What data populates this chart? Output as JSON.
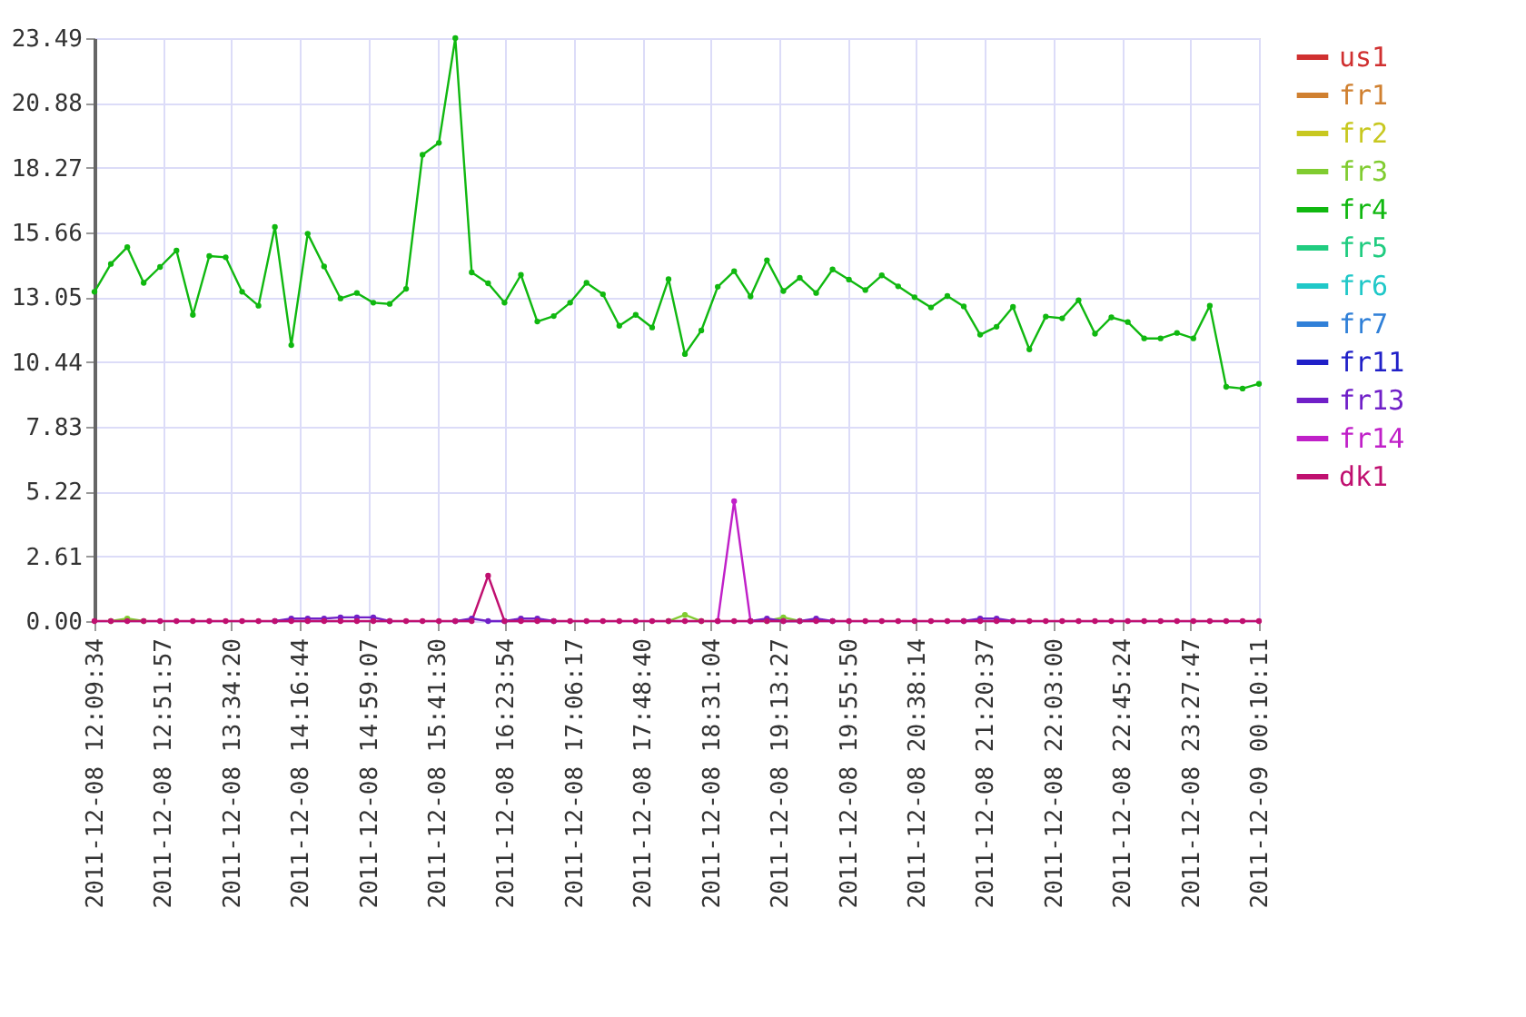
{
  "chart_data": {
    "type": "line",
    "x": [
      "2011-12-08T12:09:34",
      "2011-12-08T12:19:43",
      "2011-12-08T12:29:52",
      "2011-12-08T12:40:01",
      "2011-12-08T12:50:10",
      "2011-12-08T13:00:19",
      "2011-12-08T13:10:28",
      "2011-12-08T13:20:37",
      "2011-12-08T13:30:46",
      "2011-12-08T13:40:55",
      "2011-12-08T13:51:04",
      "2011-12-08T14:01:13",
      "2011-12-08T14:11:22",
      "2011-12-08T14:21:31",
      "2011-12-08T14:31:40",
      "2011-12-08T14:41:49",
      "2011-12-08T14:51:58",
      "2011-12-08T15:02:07",
      "2011-12-08T15:12:16",
      "2011-12-08T15:22:25",
      "2011-12-08T15:32:34",
      "2011-12-08T15:42:43",
      "2011-12-08T15:52:52",
      "2011-12-08T16:03:01",
      "2011-12-08T16:13:10",
      "2011-12-08T16:23:19",
      "2011-12-08T16:33:28",
      "2011-12-08T16:43:37",
      "2011-12-08T16:53:46",
      "2011-12-08T17:03:55",
      "2011-12-08T17:14:04",
      "2011-12-08T17:24:13",
      "2011-12-08T17:34:22",
      "2011-12-08T17:44:31",
      "2011-12-08T17:54:40",
      "2011-12-08T18:04:49",
      "2011-12-08T18:14:58",
      "2011-12-08T18:25:07",
      "2011-12-08T18:35:16",
      "2011-12-08T18:45:25",
      "2011-12-08T18:55:34",
      "2011-12-08T19:05:43",
      "2011-12-08T19:15:52",
      "2011-12-08T19:26:01",
      "2011-12-08T19:36:10",
      "2011-12-08T19:46:19",
      "2011-12-08T19:56:28",
      "2011-12-08T20:06:37",
      "2011-12-08T20:16:46",
      "2011-12-08T20:26:55",
      "2011-12-08T20:37:04",
      "2011-12-08T20:47:13",
      "2011-12-08T20:57:22",
      "2011-12-08T21:07:31",
      "2011-12-08T21:17:40",
      "2011-12-08T21:27:49",
      "2011-12-08T21:37:58",
      "2011-12-08T21:48:07",
      "2011-12-08T21:58:16",
      "2011-12-08T22:08:25",
      "2011-12-08T22:18:34",
      "2011-12-08T22:28:43",
      "2011-12-08T22:38:52",
      "2011-12-08T22:49:01",
      "2011-12-08T22:59:10",
      "2011-12-08T23:09:19",
      "2011-12-08T23:19:28",
      "2011-12-08T23:29:37",
      "2011-12-08T23:39:46",
      "2011-12-08T23:49:55",
      "2011-12-09T00:00:04",
      "2011-12-09T00:10:11"
    ],
    "series": [
      {
        "name": "us1",
        "color": "#d03030",
        "values": [
          null,
          null,
          null,
          null,
          null,
          null,
          null,
          null,
          null,
          null,
          null,
          null,
          null,
          null,
          null,
          null,
          null,
          null,
          null,
          null,
          null,
          null,
          null,
          null,
          null,
          null,
          null,
          null,
          null,
          null,
          null,
          null,
          null,
          null,
          null,
          null,
          null,
          null,
          null,
          null,
          null,
          null,
          null,
          null,
          null,
          null,
          null,
          null,
          null,
          null,
          null,
          null,
          null,
          null,
          null,
          null,
          null,
          null,
          null,
          null,
          null,
          null,
          null,
          null,
          null,
          null,
          null,
          null,
          null,
          null,
          null,
          null
        ]
      },
      {
        "name": "fr1",
        "color": "#d08030",
        "values": [
          null,
          null,
          null,
          null,
          null,
          null,
          null,
          null,
          null,
          null,
          null,
          null,
          null,
          null,
          null,
          null,
          null,
          null,
          null,
          null,
          null,
          null,
          null,
          null,
          null,
          null,
          null,
          null,
          null,
          null,
          null,
          null,
          null,
          null,
          null,
          null,
          null,
          null,
          null,
          null,
          null,
          null,
          null,
          null,
          null,
          null,
          null,
          null,
          null,
          null,
          null,
          null,
          null,
          null,
          null,
          null,
          null,
          null,
          null,
          null,
          null,
          null,
          null,
          null,
          null,
          null,
          null,
          null,
          null,
          null,
          null,
          null
        ]
      },
      {
        "name": "fr2",
        "color": "#c8c820",
        "values": [
          null,
          null,
          null,
          null,
          null,
          null,
          null,
          null,
          null,
          null,
          null,
          null,
          null,
          null,
          null,
          null,
          null,
          null,
          null,
          null,
          null,
          null,
          null,
          null,
          null,
          null,
          null,
          null,
          null,
          null,
          null,
          null,
          null,
          null,
          null,
          null,
          null,
          null,
          null,
          null,
          null,
          null,
          null,
          null,
          null,
          null,
          null,
          null,
          null,
          null,
          null,
          null,
          null,
          null,
          null,
          null,
          null,
          null,
          null,
          null,
          null,
          null,
          null,
          null,
          null,
          null,
          null,
          null,
          null,
          null,
          null,
          null
        ]
      },
      {
        "name": "fr3",
        "color": "#80cc30",
        "values": [
          null,
          0,
          0.1,
          0,
          null,
          null,
          null,
          null,
          null,
          null,
          null,
          null,
          null,
          null,
          null,
          null,
          null,
          null,
          null,
          null,
          null,
          null,
          null,
          null,
          null,
          null,
          null,
          null,
          null,
          null,
          null,
          null,
          null,
          null,
          null,
          0,
          0.25,
          0,
          null,
          null,
          null,
          0,
          0.15,
          0,
          null,
          null,
          null,
          null,
          null,
          null,
          null,
          null,
          null,
          null,
          null,
          null,
          null,
          null,
          null,
          null,
          null,
          null,
          null,
          null,
          null,
          null,
          null,
          null,
          null,
          null,
          null,
          null
        ]
      },
      {
        "name": "fr4",
        "color": "#10b810",
        "values": [
          13.27,
          14.39,
          15.07,
          13.63,
          14.27,
          14.93,
          12.34,
          14.71,
          14.66,
          13.27,
          12.71,
          15.88,
          11.12,
          15.61,
          14.29,
          13.0,
          13.22,
          12.83,
          12.78,
          13.39,
          18.79,
          19.27,
          23.49,
          14.05,
          13.61,
          12.83,
          13.95,
          12.07,
          12.29,
          12.83,
          13.63,
          13.17,
          11.9,
          12.34,
          11.83,
          13.78,
          10.76,
          11.71,
          13.47,
          14.1,
          13.08,
          14.54,
          13.3,
          13.83,
          13.22,
          14.17,
          13.76,
          13.34,
          13.93,
          13.49,
          13.05,
          12.64,
          13.1,
          12.68,
          11.54,
          11.86,
          12.66,
          10.95,
          12.27,
          12.2,
          12.93,
          11.58,
          12.24,
          12.05,
          11.39,
          11.39,
          11.61,
          11.39,
          12.71,
          9.44,
          9.37,
          9.56
        ]
      },
      {
        "name": "fr5",
        "color": "#20cc80",
        "values": [
          null,
          null,
          null,
          null,
          null,
          null,
          null,
          null,
          null,
          null,
          null,
          null,
          null,
          null,
          null,
          null,
          null,
          null,
          null,
          null,
          null,
          null,
          null,
          null,
          null,
          null,
          null,
          null,
          null,
          null,
          null,
          null,
          null,
          null,
          null,
          null,
          null,
          null,
          null,
          null,
          null,
          null,
          null,
          null,
          null,
          null,
          null,
          null,
          null,
          null,
          null,
          null,
          null,
          null,
          null,
          null,
          null,
          null,
          null,
          null,
          null,
          null,
          null,
          null,
          null,
          null,
          null,
          null,
          null,
          null,
          null,
          null
        ]
      },
      {
        "name": "fr6",
        "color": "#20c8c8",
        "values": [
          null,
          null,
          null,
          null,
          null,
          null,
          null,
          null,
          null,
          null,
          null,
          null,
          null,
          null,
          null,
          null,
          null,
          null,
          null,
          null,
          null,
          null,
          null,
          null,
          null,
          null,
          null,
          null,
          null,
          null,
          null,
          null,
          null,
          null,
          null,
          null,
          null,
          null,
          null,
          null,
          null,
          null,
          null,
          null,
          null,
          null,
          null,
          null,
          null,
          null,
          null,
          null,
          null,
          null,
          null,
          null,
          null,
          null,
          null,
          null,
          null,
          null,
          null,
          null,
          null,
          null,
          null,
          null,
          null,
          null,
          null,
          null
        ]
      },
      {
        "name": "fr7",
        "color": "#3080d8",
        "values": [
          null,
          null,
          null,
          null,
          null,
          null,
          null,
          null,
          null,
          null,
          null,
          null,
          null,
          null,
          null,
          null,
          null,
          null,
          null,
          null,
          null,
          null,
          null,
          null,
          null,
          null,
          null,
          null,
          null,
          null,
          null,
          null,
          null,
          null,
          null,
          null,
          null,
          null,
          null,
          null,
          null,
          null,
          null,
          null,
          null,
          null,
          null,
          null,
          null,
          null,
          null,
          null,
          null,
          null,
          null,
          null,
          null,
          null,
          null,
          null,
          null,
          null,
          null,
          null,
          null,
          null,
          null,
          null,
          null,
          null,
          null,
          null
        ]
      },
      {
        "name": "fr11",
        "color": "#2020c8",
        "values": [
          null,
          null,
          null,
          null,
          null,
          null,
          null,
          null,
          null,
          null,
          null,
          null,
          null,
          null,
          null,
          null,
          null,
          null,
          null,
          null,
          null,
          null,
          null,
          null,
          null,
          null,
          null,
          null,
          null,
          null,
          null,
          null,
          null,
          null,
          null,
          null,
          null,
          null,
          null,
          null,
          null,
          null,
          null,
          null,
          null,
          null,
          null,
          null,
          null,
          null,
          null,
          null,
          null,
          null,
          null,
          null,
          null,
          null,
          null,
          null,
          null,
          null,
          null,
          null,
          null,
          null,
          null,
          null,
          null,
          null,
          null,
          null
        ]
      },
      {
        "name": "fr13",
        "color": "#7020c8",
        "values": [
          null,
          null,
          null,
          null,
          null,
          null,
          null,
          null,
          null,
          null,
          null,
          0,
          0.1,
          0.1,
          0.1,
          0.15,
          0.15,
          0.15,
          0,
          null,
          null,
          null,
          0,
          0.1,
          0,
          0,
          0.1,
          0.1,
          0,
          null,
          null,
          null,
          null,
          null,
          null,
          null,
          null,
          null,
          null,
          null,
          0,
          0.1,
          0,
          0,
          0.1,
          0,
          null,
          null,
          null,
          null,
          null,
          null,
          null,
          0,
          0.1,
          0.1,
          0,
          null,
          null,
          null,
          null,
          null,
          null,
          null,
          null,
          null,
          null,
          null,
          null,
          null,
          null,
          null
        ]
      },
      {
        "name": "fr14",
        "color": "#c020c8",
        "values": [
          null,
          null,
          null,
          null,
          null,
          null,
          null,
          null,
          null,
          null,
          null,
          null,
          null,
          null,
          null,
          null,
          null,
          null,
          null,
          null,
          null,
          null,
          null,
          null,
          null,
          null,
          null,
          null,
          null,
          null,
          null,
          null,
          null,
          null,
          null,
          null,
          null,
          null,
          0,
          4.83,
          0,
          null,
          null,
          null,
          null,
          null,
          null,
          null,
          null,
          null,
          null,
          null,
          null,
          null,
          null,
          null,
          null,
          null,
          null,
          null,
          null,
          null,
          null,
          null,
          null,
          null,
          null,
          null,
          null,
          null,
          null,
          null
        ]
      },
      {
        "name": "dk1",
        "color": "#c01070",
        "values": [
          0,
          0,
          0,
          0,
          0,
          0,
          0,
          0,
          0,
          0,
          0,
          0,
          0,
          0,
          0,
          0,
          0,
          0,
          0,
          0,
          0,
          0,
          0,
          0,
          1.83,
          0,
          0,
          0,
          0,
          0,
          0,
          0,
          0,
          0,
          0,
          0,
          0,
          0,
          0,
          0,
          0,
          0,
          0,
          0,
          0,
          0,
          0,
          0,
          0,
          0,
          0,
          0,
          0,
          0,
          0,
          0,
          0,
          0,
          0,
          0,
          0,
          0,
          0,
          0,
          0,
          0,
          0,
          0,
          0,
          0,
          0,
          0
        ]
      }
    ],
    "xlim": [
      "2011-12-08T12:09:34",
      "2011-12-09T00:10:11"
    ],
    "xticks": [
      {
        "value": "2011-12-08T12:09:34",
        "label": "2011-12-08 12:09:34"
      },
      {
        "value": "2011-12-08T12:51:57",
        "label": "2011-12-08 12:51:57"
      },
      {
        "value": "2011-12-08T13:34:20",
        "label": "2011-12-08 13:34:20"
      },
      {
        "value": "2011-12-08T14:16:44",
        "label": "2011-12-08 14:16:44"
      },
      {
        "value": "2011-12-08T14:59:07",
        "label": "2011-12-08 14:59:07"
      },
      {
        "value": "2011-12-08T15:41:30",
        "label": "2011-12-08 15:41:30"
      },
      {
        "value": "2011-12-08T16:23:54",
        "label": "2011-12-08 16:23:54"
      },
      {
        "value": "2011-12-08T17:06:17",
        "label": "2011-12-08 17:06:17"
      },
      {
        "value": "2011-12-08T17:48:40",
        "label": "2011-12-08 17:48:40"
      },
      {
        "value": "2011-12-08T18:31:04",
        "label": "2011-12-08 18:31:04"
      },
      {
        "value": "2011-12-08T19:13:27",
        "label": "2011-12-08 19:13:27"
      },
      {
        "value": "2011-12-08T19:55:50",
        "label": "2011-12-08 19:55:50"
      },
      {
        "value": "2011-12-08T20:38:14",
        "label": "2011-12-08 20:38:14"
      },
      {
        "value": "2011-12-08T21:20:37",
        "label": "2011-12-08 21:20:37"
      },
      {
        "value": "2011-12-08T22:03:00",
        "label": "2011-12-08 22:03:00"
      },
      {
        "value": "2011-12-08T22:45:24",
        "label": "2011-12-08 22:45:24"
      },
      {
        "value": "2011-12-08T23:27:47",
        "label": "2011-12-08 23:27:47"
      },
      {
        "value": "2011-12-09T00:10:11",
        "label": "2011-12-09 00:10:11"
      }
    ],
    "ylim": [
      0,
      23.49
    ],
    "yticks": [
      {
        "value": 0,
        "label": "0.00"
      },
      2.61,
      5.22,
      7.83,
      10.44,
      13.05,
      15.66,
      18.27,
      20.88,
      23.49
    ],
    "grid": true,
    "legend": "top right",
    "marker": "circle",
    "line_style": "solid"
  }
}
